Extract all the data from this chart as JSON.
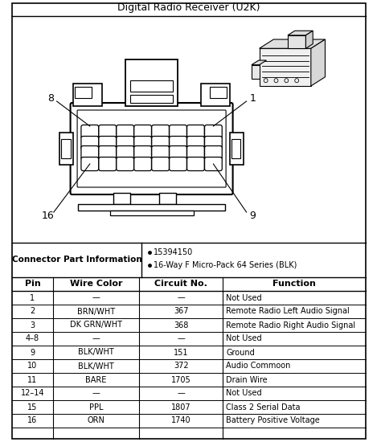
{
  "title": "Digital Radio Receiver (U2K)",
  "connector_info_label": "Connector Part Information",
  "connector_info_bullets": [
    "15394150",
    "16-Way F Micro-Pack 64 Series (BLK)"
  ],
  "table_headers": [
    "Pin",
    "Wire Color",
    "Circuit No.",
    "Function"
  ],
  "table_rows": [
    [
      "1",
      "—",
      "—",
      "Not Used"
    ],
    [
      "2",
      "BRN/WHT",
      "367",
      "Remote Radio Left Audio Signal"
    ],
    [
      "3",
      "DK GRN/WHT",
      "368",
      "Remote Radio Right Audio Signal"
    ],
    [
      "4–8",
      "—",
      "—",
      "Not Used"
    ],
    [
      "9",
      "BLK/WHT",
      "151",
      "Ground"
    ],
    [
      "10",
      "BLK/WHT",
      "372",
      "Audio Commoon"
    ],
    [
      "11",
      "BARE",
      "1705",
      "Drain Wire"
    ],
    [
      "12–14",
      "—",
      "—",
      "Not Used"
    ],
    [
      "15",
      "PPL",
      "1807",
      "Class 2 Serial Data"
    ],
    [
      "16",
      "ORN",
      "1740",
      "Battery Positive Voltage"
    ]
  ],
  "bg_color": "#ffffff",
  "line_color": "#000000",
  "text_color": "#000000",
  "title_fontsize": 9,
  "header_fontsize": 8,
  "body_fontsize": 7
}
